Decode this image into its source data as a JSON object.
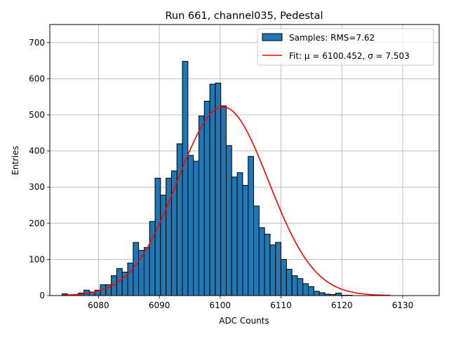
{
  "chart_data": {
    "type": "bar",
    "title": "Run 661, channel035, Pedestal",
    "xlabel": "ADC Counts",
    "ylabel": "Entries",
    "xlim": [
      6072,
      6136
    ],
    "ylim": [
      0,
      750
    ],
    "xticks": [
      6080,
      6090,
      6100,
      6110,
      6120,
      6130
    ],
    "yticks": [
      0,
      100,
      200,
      300,
      400,
      500,
      600,
      700
    ],
    "grid": true,
    "legend_position": "upper-right",
    "histogram": {
      "name": "Samples: RMS=7.62",
      "bin_width": 0.9,
      "bin_edges_start": 6074,
      "counts": [
        5,
        2,
        3,
        7,
        15,
        10,
        15,
        30,
        30,
        55,
        75,
        65,
        90,
        147,
        125,
        133,
        205,
        325,
        278,
        325,
        345,
        420,
        648,
        388,
        372,
        497,
        538,
        585,
        588,
        525,
        415,
        328,
        340,
        305,
        385,
        248,
        188,
        170,
        140,
        147,
        100,
        73,
        55,
        47,
        33,
        25,
        12,
        8,
        4,
        3,
        7,
        1,
        1
      ],
      "color": "#1f77b4",
      "edgecolor": "#000000"
    },
    "fit": {
      "name": "Fit: μ = 6100.452, σ = 7.503",
      "mu": 6100.452,
      "sigma": 7.503,
      "amplitude": 522,
      "x_start": 6074,
      "x_end": 6128,
      "color": "#ff0000"
    }
  }
}
